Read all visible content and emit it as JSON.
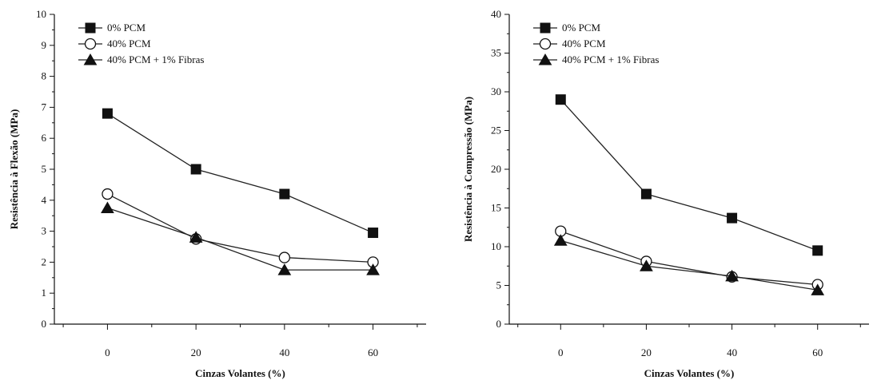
{
  "chart_data": [
    {
      "type": "line",
      "xlabel": "Cinzas Volantes (%)",
      "ylabel": "Resistência à Flexão (MPa)",
      "xlim": [
        -12,
        72
      ],
      "ylim": [
        0,
        10
      ],
      "xticks": [
        0,
        20,
        40,
        60
      ],
      "yticks": [
        0,
        1,
        2,
        3,
        4,
        5,
        6,
        7,
        8,
        9,
        10
      ],
      "legend_position": "top-left",
      "series": [
        {
          "name": "0% PCM",
          "marker": "square-filled",
          "x": [
            0,
            20,
            40,
            60
          ],
          "y": [
            6.8,
            5.0,
            4.2,
            2.95
          ]
        },
        {
          "name": "40% PCM",
          "marker": "circle-open",
          "x": [
            0,
            20,
            40,
            60
          ],
          "y": [
            4.2,
            2.75,
            2.15,
            2.0
          ]
        },
        {
          "name": "40% PCM + 1% Fibras",
          "marker": "triangle-filled",
          "x": [
            0,
            20,
            40,
            60
          ],
          "y": [
            3.75,
            2.8,
            1.75,
            1.75
          ]
        }
      ]
    },
    {
      "type": "line",
      "xlabel": "Cinzas Volantes (%)",
      "ylabel": "Resistência à Compressão (MPa)",
      "xlim": [
        -12,
        72
      ],
      "ylim": [
        0,
        40
      ],
      "xticks": [
        0,
        20,
        40,
        60
      ],
      "yticks": [
        0,
        5,
        10,
        15,
        20,
        25,
        30,
        35,
        40
      ],
      "legend_position": "top-left",
      "series": [
        {
          "name": "0% PCM",
          "marker": "square-filled",
          "x": [
            0,
            20,
            40,
            60
          ],
          "y": [
            29.0,
            16.8,
            13.7,
            9.5
          ]
        },
        {
          "name": "40% PCM",
          "marker": "circle-open",
          "x": [
            0,
            20,
            40,
            60
          ],
          "y": [
            12.0,
            8.1,
            6.1,
            5.1
          ]
        },
        {
          "name": "40% PCM + 1% Fibras",
          "marker": "triangle-filled",
          "x": [
            0,
            20,
            40,
            60
          ],
          "y": [
            10.8,
            7.5,
            6.2,
            4.4
          ]
        }
      ]
    }
  ]
}
